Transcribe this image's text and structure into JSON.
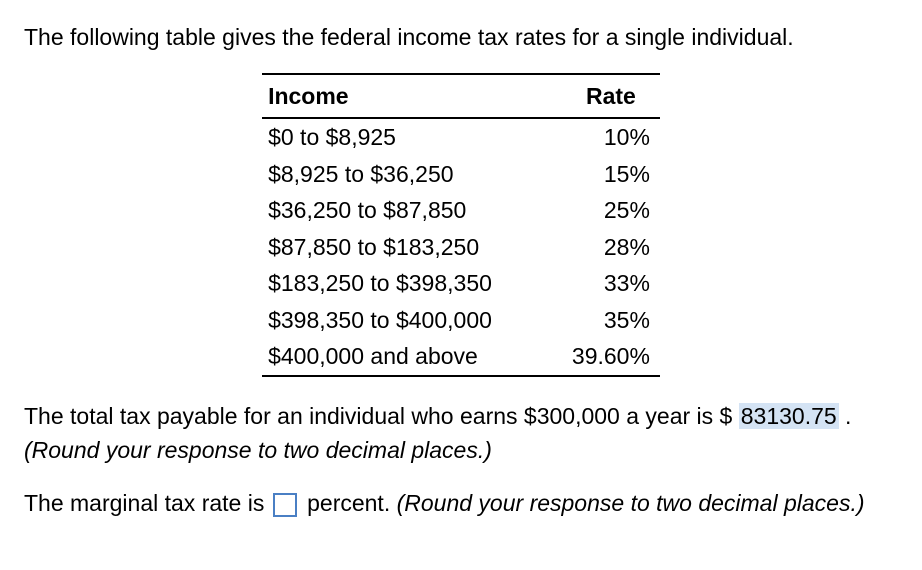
{
  "intro": "The following table gives the federal income tax rates for a single individual.",
  "table": {
    "headers": {
      "income": "Income",
      "rate": "Rate"
    },
    "rows": [
      {
        "income": "$0 to $8,925",
        "rate": "10%"
      },
      {
        "income": "$8,925 to $36,250",
        "rate": "15%"
      },
      {
        "income": "$36,250 to $87,850",
        "rate": "25%"
      },
      {
        "income": "$87,850 to $183,250",
        "rate": "28%"
      },
      {
        "income": "$183,250 to $398,350",
        "rate": "33%"
      },
      {
        "income": "$398,350 to $400,000",
        "rate": "35%"
      },
      {
        "income": "$400,000 and above",
        "rate": "39.60%"
      }
    ]
  },
  "q1": {
    "pre": "The total tax payable for an individual who earns $300,000 a year is $ ",
    "answer": "83130.75",
    "post": " . ",
    "hint": "(Round your response to two decimal places.)"
  },
  "q2": {
    "pre": "The marginal tax rate is ",
    "post": " percent. ",
    "hint": "(Round your response to two decimal places.)"
  }
}
